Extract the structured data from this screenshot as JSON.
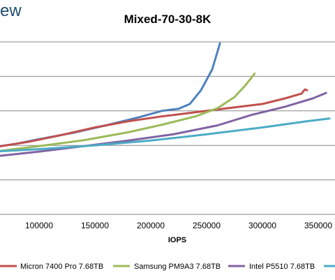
{
  "logo_text": "ew",
  "chart_data": {
    "type": "line",
    "title": "Mixed-70-30-8K",
    "xlabel": "IOPS",
    "ylabel": "",
    "xlim": [
      60000,
      360000
    ],
    "ylim": [
      0,
      5
    ],
    "x_ticks": [
      100000,
      150000,
      200000,
      250000,
      300000,
      350000
    ],
    "x_tick_labels": [
      "100000",
      "150000",
      "200000",
      "250000",
      "300000",
      "350000"
    ],
    "y_gridlines": [
      0,
      1,
      2,
      3,
      4,
      5
    ],
    "grid": true,
    "legend": "bottom",
    "colors": {
      "micron": "#c0504d",
      "samsung": "#9bbb59",
      "intel": "#8064a2",
      "blue": "#4f81bd",
      "teal": "#4bacc6",
      "grid": "#888888"
    },
    "series": [
      {
        "name": "",
        "color_key": "blue",
        "points": [
          [
            60000,
            1.95
          ],
          [
            80000,
            2.05
          ],
          [
            100000,
            2.18
          ],
          [
            130000,
            2.36
          ],
          [
            160000,
            2.58
          ],
          [
            190000,
            2.82
          ],
          [
            210000,
            3.0
          ],
          [
            225000,
            3.06
          ],
          [
            235000,
            3.2
          ],
          [
            245000,
            3.6
          ],
          [
            255000,
            4.2
          ],
          [
            262000,
            4.96
          ]
        ]
      },
      {
        "name": "Micron 7400 Pro 7.68TB",
        "color_key": "micron",
        "points": [
          [
            60000,
            1.95
          ],
          [
            90000,
            2.1
          ],
          [
            120000,
            2.3
          ],
          [
            150000,
            2.52
          ],
          [
            180000,
            2.7
          ],
          [
            210000,
            2.84
          ],
          [
            240000,
            2.96
          ],
          [
            270000,
            3.08
          ],
          [
            300000,
            3.2
          ],
          [
            320000,
            3.36
          ],
          [
            335000,
            3.5
          ],
          [
            338000,
            3.62
          ],
          [
            340000,
            3.6
          ]
        ]
      },
      {
        "name": "Samsung PM9A3 7.68TB",
        "color_key": "samsung",
        "points": [
          [
            60000,
            1.82
          ],
          [
            100000,
            1.98
          ],
          [
            140000,
            2.15
          ],
          [
            180000,
            2.38
          ],
          [
            210000,
            2.6
          ],
          [
            240000,
            2.84
          ],
          [
            260000,
            3.08
          ],
          [
            275000,
            3.4
          ],
          [
            285000,
            3.75
          ],
          [
            293000,
            4.08
          ]
        ]
      },
      {
        "name": "Intel P5510 7.68TB",
        "color_key": "intel",
        "points": [
          [
            60000,
            1.68
          ],
          [
            100000,
            1.82
          ],
          [
            140000,
            1.98
          ],
          [
            180000,
            2.14
          ],
          [
            220000,
            2.32
          ],
          [
            260000,
            2.58
          ],
          [
            290000,
            2.88
          ],
          [
            320000,
            3.12
          ],
          [
            345000,
            3.36
          ],
          [
            357000,
            3.52
          ]
        ]
      },
      {
        "name": "",
        "color_key": "teal",
        "points": [
          [
            60000,
            1.82
          ],
          [
            100000,
            1.89
          ],
          [
            150000,
            2.0
          ],
          [
            200000,
            2.14
          ],
          [
            250000,
            2.32
          ],
          [
            300000,
            2.52
          ],
          [
            340000,
            2.7
          ],
          [
            360000,
            2.78
          ]
        ]
      }
    ]
  }
}
